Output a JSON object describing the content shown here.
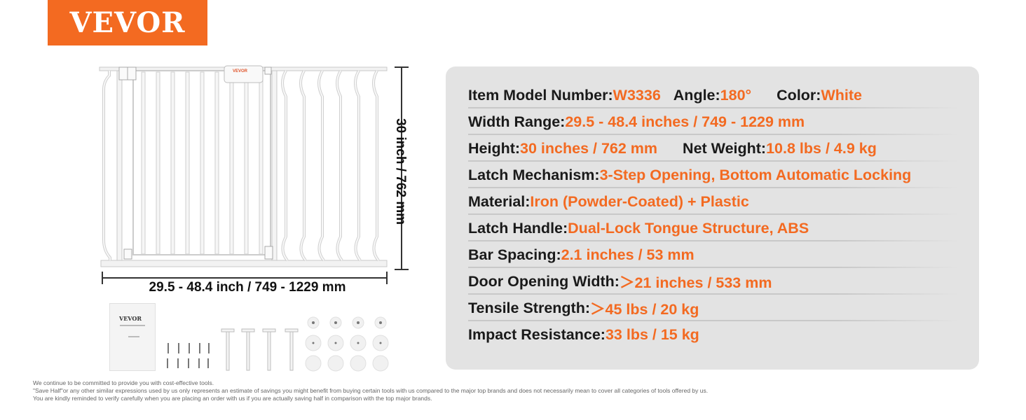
{
  "brand": {
    "logo_text": "VEVOR",
    "accent_color": "#f36a21"
  },
  "figure": {
    "height_label": "30 inch / 762 mm",
    "width_label": "29.5 - 48.4 inch / 749 - 1229 mm",
    "gate_badge": "VEVOR",
    "manual_brand": "VEVOR"
  },
  "specs": [
    {
      "parts": [
        {
          "k": "Item Model Number: ",
          "v": "W3336"
        },
        {
          "k": "Angle: ",
          "v": "180°"
        },
        {
          "k": "Color: ",
          "v": "White"
        }
      ]
    },
    {
      "parts": [
        {
          "k": "Width Range: ",
          "v": "29.5 - 48.4 inches / 749 - 1229 mm"
        }
      ]
    },
    {
      "parts": [
        {
          "k": "Height: ",
          "v": "30 inches / 762 mm"
        },
        {
          "k": "Net Weight: ",
          "v": "10.8 lbs / 4.9 kg"
        }
      ]
    },
    {
      "parts": [
        {
          "k": "Latch Mechanism: ",
          "v": "3-Step Opening, Bottom Automatic Locking"
        }
      ]
    },
    {
      "parts": [
        {
          "k": "Material: ",
          "v": "Iron (Powder-Coated) + Plastic"
        }
      ]
    },
    {
      "parts": [
        {
          "k": "Latch Handle: ",
          "v": "Dual-Lock Tongue Structure, ABS"
        }
      ]
    },
    {
      "parts": [
        {
          "k": "Bar Spacing: ",
          "v": "2.1 inches / 53 mm"
        }
      ]
    },
    {
      "parts": [
        {
          "k": "Door Opening Width: ",
          "v": "＞21 inches / 533 mm"
        }
      ]
    },
    {
      "parts": [
        {
          "k": "Tensile Strength: ",
          "v": "＞45 lbs / 20 kg"
        }
      ]
    },
    {
      "parts": [
        {
          "k": "Impact Resistance: ",
          "v": "33 lbs / 15 kg"
        }
      ]
    }
  ],
  "disclaimer": [
    "We continue to be committed to provide you with cost-effective tools.",
    "\"Save Half\"or any other similar expressions used by us only represents an estimate of savings you might benefit from buying certain tools with us compared to the major top brands and does not necessarily mean to cover all categories of tools offered by us.",
    "You are kindly reminded to verify carefully when you are placing an order with us if you are actually saving half in comparison with the top major brands."
  ]
}
